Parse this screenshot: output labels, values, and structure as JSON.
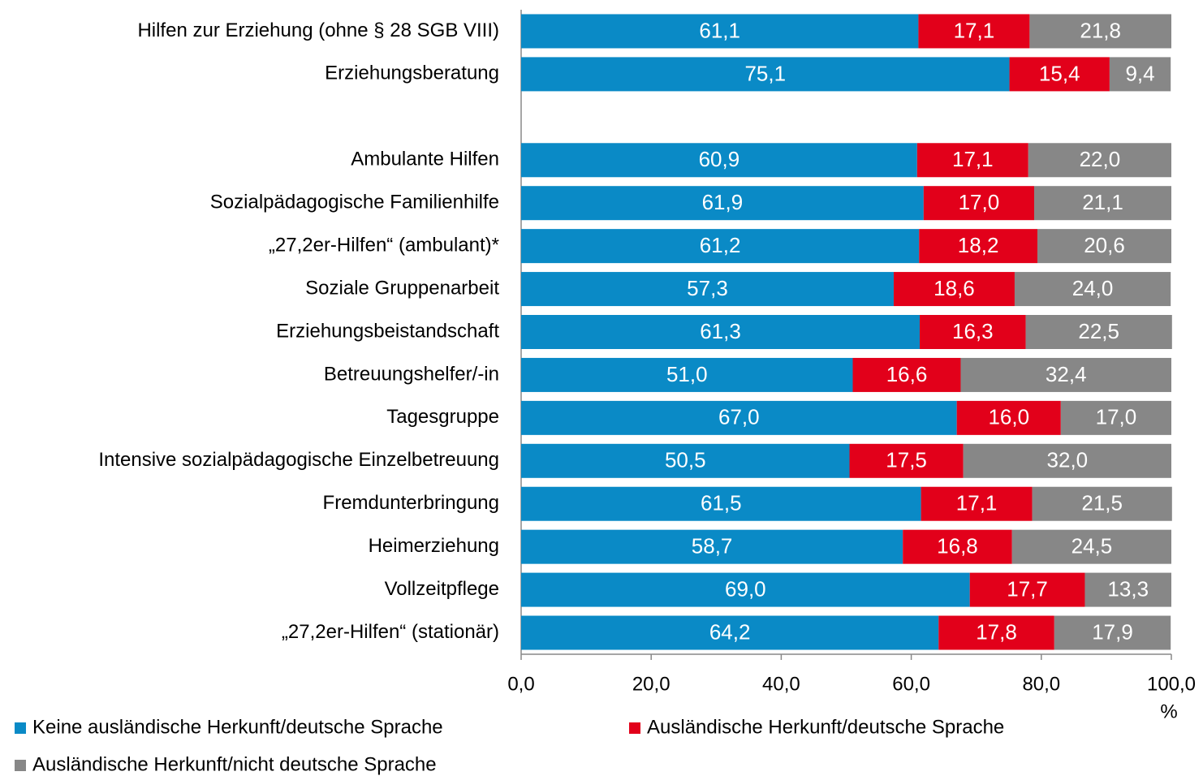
{
  "chart_data": {
    "type": "stacked_barh",
    "categories": [
      "Hilfen zur Erziehung (ohne § 28 SGB VIII)",
      "Erziehungsberatung",
      null,
      "Ambulante Hilfen",
      "Sozialpädagogische Familienhilfe",
      "„27,2er-Hilfen“ (ambulant)*",
      "Soziale Gruppenarbeit",
      "Erziehungsbeistandschaft",
      "Betreuungshelfer/-in",
      "Tagesgruppe",
      "Intensive sozialpädagogische Einzelbetreuung",
      "Fremdunterbringung",
      "Heimerziehung",
      "Vollzeitpflege",
      "„27,2er-Hilfen“ (stationär)"
    ],
    "series": [
      {
        "name": "Keine ausländische Herkunft/deutsche Sprache",
        "color": "#0a8ac6",
        "values": [
          61.1,
          75.1,
          null,
          60.9,
          61.9,
          61.2,
          57.3,
          61.3,
          51.0,
          67.0,
          50.5,
          61.5,
          58.7,
          69.0,
          64.2
        ],
        "value_labels": [
          "61,1",
          "75,1",
          null,
          "60,9",
          "61,9",
          "61,2",
          "57,3",
          "61,3",
          "51,0",
          "67,0",
          "50,5",
          "61,5",
          "58,7",
          "69,0",
          "64,2"
        ]
      },
      {
        "name": "Ausländische Herkunft/deutsche Sprache",
        "color": "#e2001a",
        "values": [
          17.1,
          15.4,
          null,
          17.1,
          17.0,
          18.2,
          18.6,
          16.3,
          16.6,
          16.0,
          17.5,
          17.1,
          16.8,
          17.7,
          17.8
        ],
        "value_labels": [
          "17,1",
          "15,4",
          null,
          "17,1",
          "17,0",
          "18,2",
          "18,6",
          "16,3",
          "16,6",
          "16,0",
          "17,5",
          "17,1",
          "16,8",
          "17,7",
          "17,8"
        ]
      },
      {
        "name": "Ausländische Herkunft/nicht deutsche Sprache",
        "color": "#878787",
        "values": [
          21.8,
          9.4,
          null,
          22.0,
          21.1,
          20.6,
          24.0,
          22.5,
          32.4,
          17.0,
          32.0,
          21.5,
          24.5,
          13.3,
          17.9
        ],
        "value_labels": [
          "21,8",
          "9,4",
          null,
          "22,0",
          "21,1",
          "20,6",
          "24,0",
          "22,5",
          "32,4",
          "17,0",
          "32,0",
          "21,5",
          "24,5",
          "13,3",
          "17,9"
        ]
      }
    ],
    "xlim": [
      0,
      100
    ],
    "xticks": [
      {
        "value": 0,
        "label": "0,0"
      },
      {
        "value": 20,
        "label": "20,0"
      },
      {
        "value": 40,
        "label": "40,0"
      },
      {
        "value": 60,
        "label": "60,0"
      },
      {
        "value": 80,
        "label": "80,0"
      },
      {
        "value": 100,
        "label": "100,0"
      }
    ],
    "x_label": "%"
  }
}
